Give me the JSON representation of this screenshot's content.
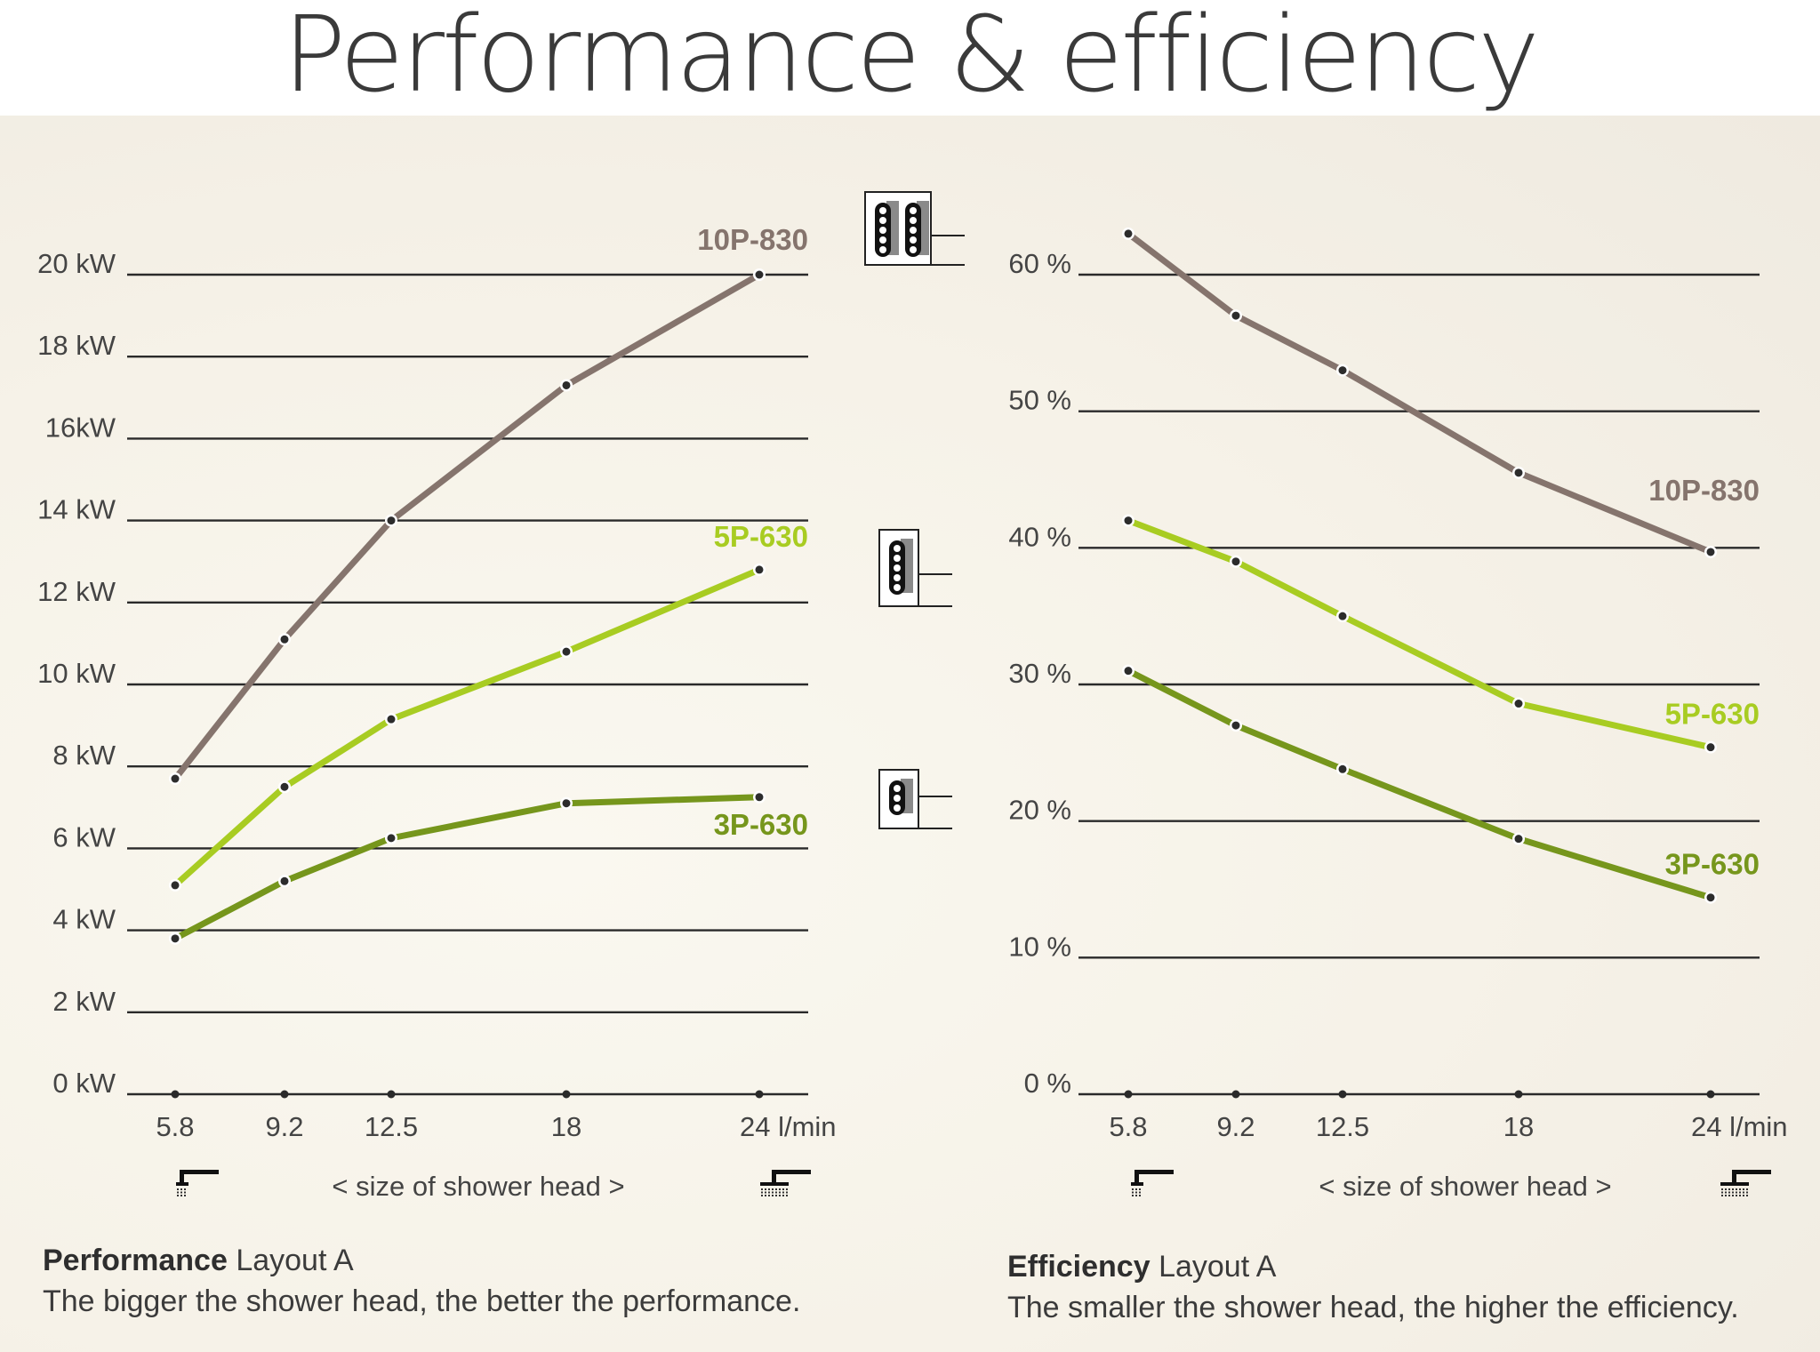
{
  "title": "Performance & efficiency",
  "chart_data": [
    {
      "type": "line",
      "id": "performance",
      "title": "Performance",
      "subtitle": "Layout A",
      "caption": "The bigger the shower head, the better the performance.",
      "xlabel": "< size of shower head >",
      "x_unit_suffix": " l/min",
      "x": [
        5.8,
        9.2,
        12.5,
        18,
        24
      ],
      "x_tick_labels": [
        "5.8",
        "9.2",
        "12.5",
        "18",
        "24 l/min"
      ],
      "ylim": [
        0,
        20
      ],
      "y_ticks": [
        0,
        2,
        4,
        6,
        8,
        10,
        12,
        14,
        16,
        18,
        20
      ],
      "y_tick_labels": [
        "0 kW",
        "2 kW",
        "4 kW",
        "6 kW",
        "8 kW",
        "10 kW",
        "12 kW",
        "14 kW",
        "16kW",
        "18 kW",
        "20 kW"
      ],
      "grid": true,
      "series": [
        {
          "name": "10P-830",
          "color": "#85746d",
          "values": [
            7.7,
            11.1,
            14.0,
            17.3,
            20.0
          ],
          "label_position": "above-end"
        },
        {
          "name": "5P-630",
          "color": "#a8cc22",
          "values": [
            5.1,
            7.5,
            9.15,
            10.8,
            12.8
          ],
          "label_position": "above-end"
        },
        {
          "name": "3P-630",
          "color": "#76961c",
          "values": [
            3.8,
            5.2,
            6.25,
            7.1,
            7.25
          ],
          "label_position": "below-end"
        }
      ]
    },
    {
      "type": "line",
      "id": "efficiency",
      "title": "Efficiency",
      "subtitle": "Layout A",
      "caption": "The smaller the shower head, the higher the efficiency.",
      "xlabel": "< size of shower head >",
      "x": [
        5.8,
        9.2,
        12.5,
        18,
        24
      ],
      "x_tick_labels": [
        "5.8",
        "9.2",
        "12.5",
        "18",
        "24 l/min"
      ],
      "ylim": [
        0,
        60
      ],
      "y_ticks": [
        0,
        10,
        20,
        30,
        40,
        50,
        60
      ],
      "y_tick_labels": [
        "0 %",
        "10 %",
        "20 %",
        "30 %",
        "40 %",
        "50 %",
        "60 %"
      ],
      "grid": true,
      "series": [
        {
          "name": "10P-830",
          "color": "#85746d",
          "values": [
            63.0,
            57.0,
            53.0,
            45.5,
            39.7
          ],
          "label_position": "above-end"
        },
        {
          "name": "5P-630",
          "color": "#a8cc22",
          "values": [
            42.0,
            39.0,
            35.0,
            28.6,
            25.4
          ],
          "label_position": "above-end"
        },
        {
          "name": "3P-630",
          "color": "#76961c",
          "values": [
            31.0,
            27.0,
            23.8,
            18.7,
            14.4
          ],
          "label_position": "above-end"
        }
      ]
    }
  ],
  "model_icons": [
    {
      "name": "10P-830",
      "elements": 10,
      "columns": 2
    },
    {
      "name": "5P-630",
      "elements": 5,
      "columns": 1
    },
    {
      "name": "3P-630",
      "elements": 3,
      "columns": 1
    }
  ],
  "shower_icons": {
    "small": "small-shower-head-icon",
    "large": "large-shower-head-icon"
  }
}
